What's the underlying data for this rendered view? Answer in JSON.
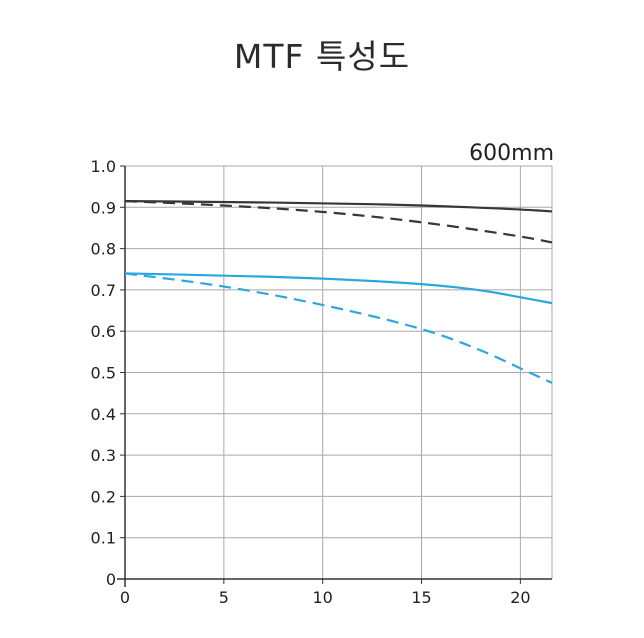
{
  "title": "MTF 특성도",
  "chart_data": {
    "type": "line",
    "title": "MTF 특성도",
    "annotation": "600mm",
    "xlabel": "",
    "ylabel": "",
    "xlim": [
      0,
      21.6
    ],
    "ylim": [
      0,
      1.0
    ],
    "x_ticks": [
      0,
      5,
      10,
      15,
      20
    ],
    "x_tick_labels": [
      "0",
      "5",
      "10",
      "15",
      "20"
    ],
    "y_ticks": [
      0,
      0.1,
      0.2,
      0.3,
      0.4,
      0.5,
      0.6,
      0.7,
      0.8,
      0.9,
      1.0
    ],
    "y_tick_labels": [
      "0",
      "0.1",
      "0.2",
      "0.3",
      "0.4",
      "0.5",
      "0.6",
      "0.7",
      "0.8",
      "0.9",
      "1.0"
    ],
    "grid": true,
    "legend": "none",
    "series": [
      {
        "color": "#3a3536",
        "dash": "solid",
        "x": [
          0,
          5,
          10,
          15,
          20,
          21.6
        ],
        "y": [
          0.915,
          0.913,
          0.91,
          0.905,
          0.895,
          0.89
        ]
      },
      {
        "color": "#3a3536",
        "dash": "dashed",
        "x": [
          0,
          5,
          10,
          15,
          20,
          21.6
        ],
        "y": [
          0.915,
          0.905,
          0.89,
          0.865,
          0.83,
          0.815
        ]
      },
      {
        "color": "#2ba7e0",
        "dash": "solid",
        "x": [
          0,
          5,
          10,
          15,
          18,
          20,
          21.6
        ],
        "y": [
          0.74,
          0.735,
          0.728,
          0.715,
          0.7,
          0.682,
          0.668
        ]
      },
      {
        "color": "#2ba7e0",
        "dash": "dashed",
        "x": [
          0,
          5,
          10,
          15,
          18,
          20,
          21.6
        ],
        "y": [
          0.74,
          0.71,
          0.665,
          0.608,
          0.555,
          0.51,
          0.475
        ]
      }
    ]
  }
}
